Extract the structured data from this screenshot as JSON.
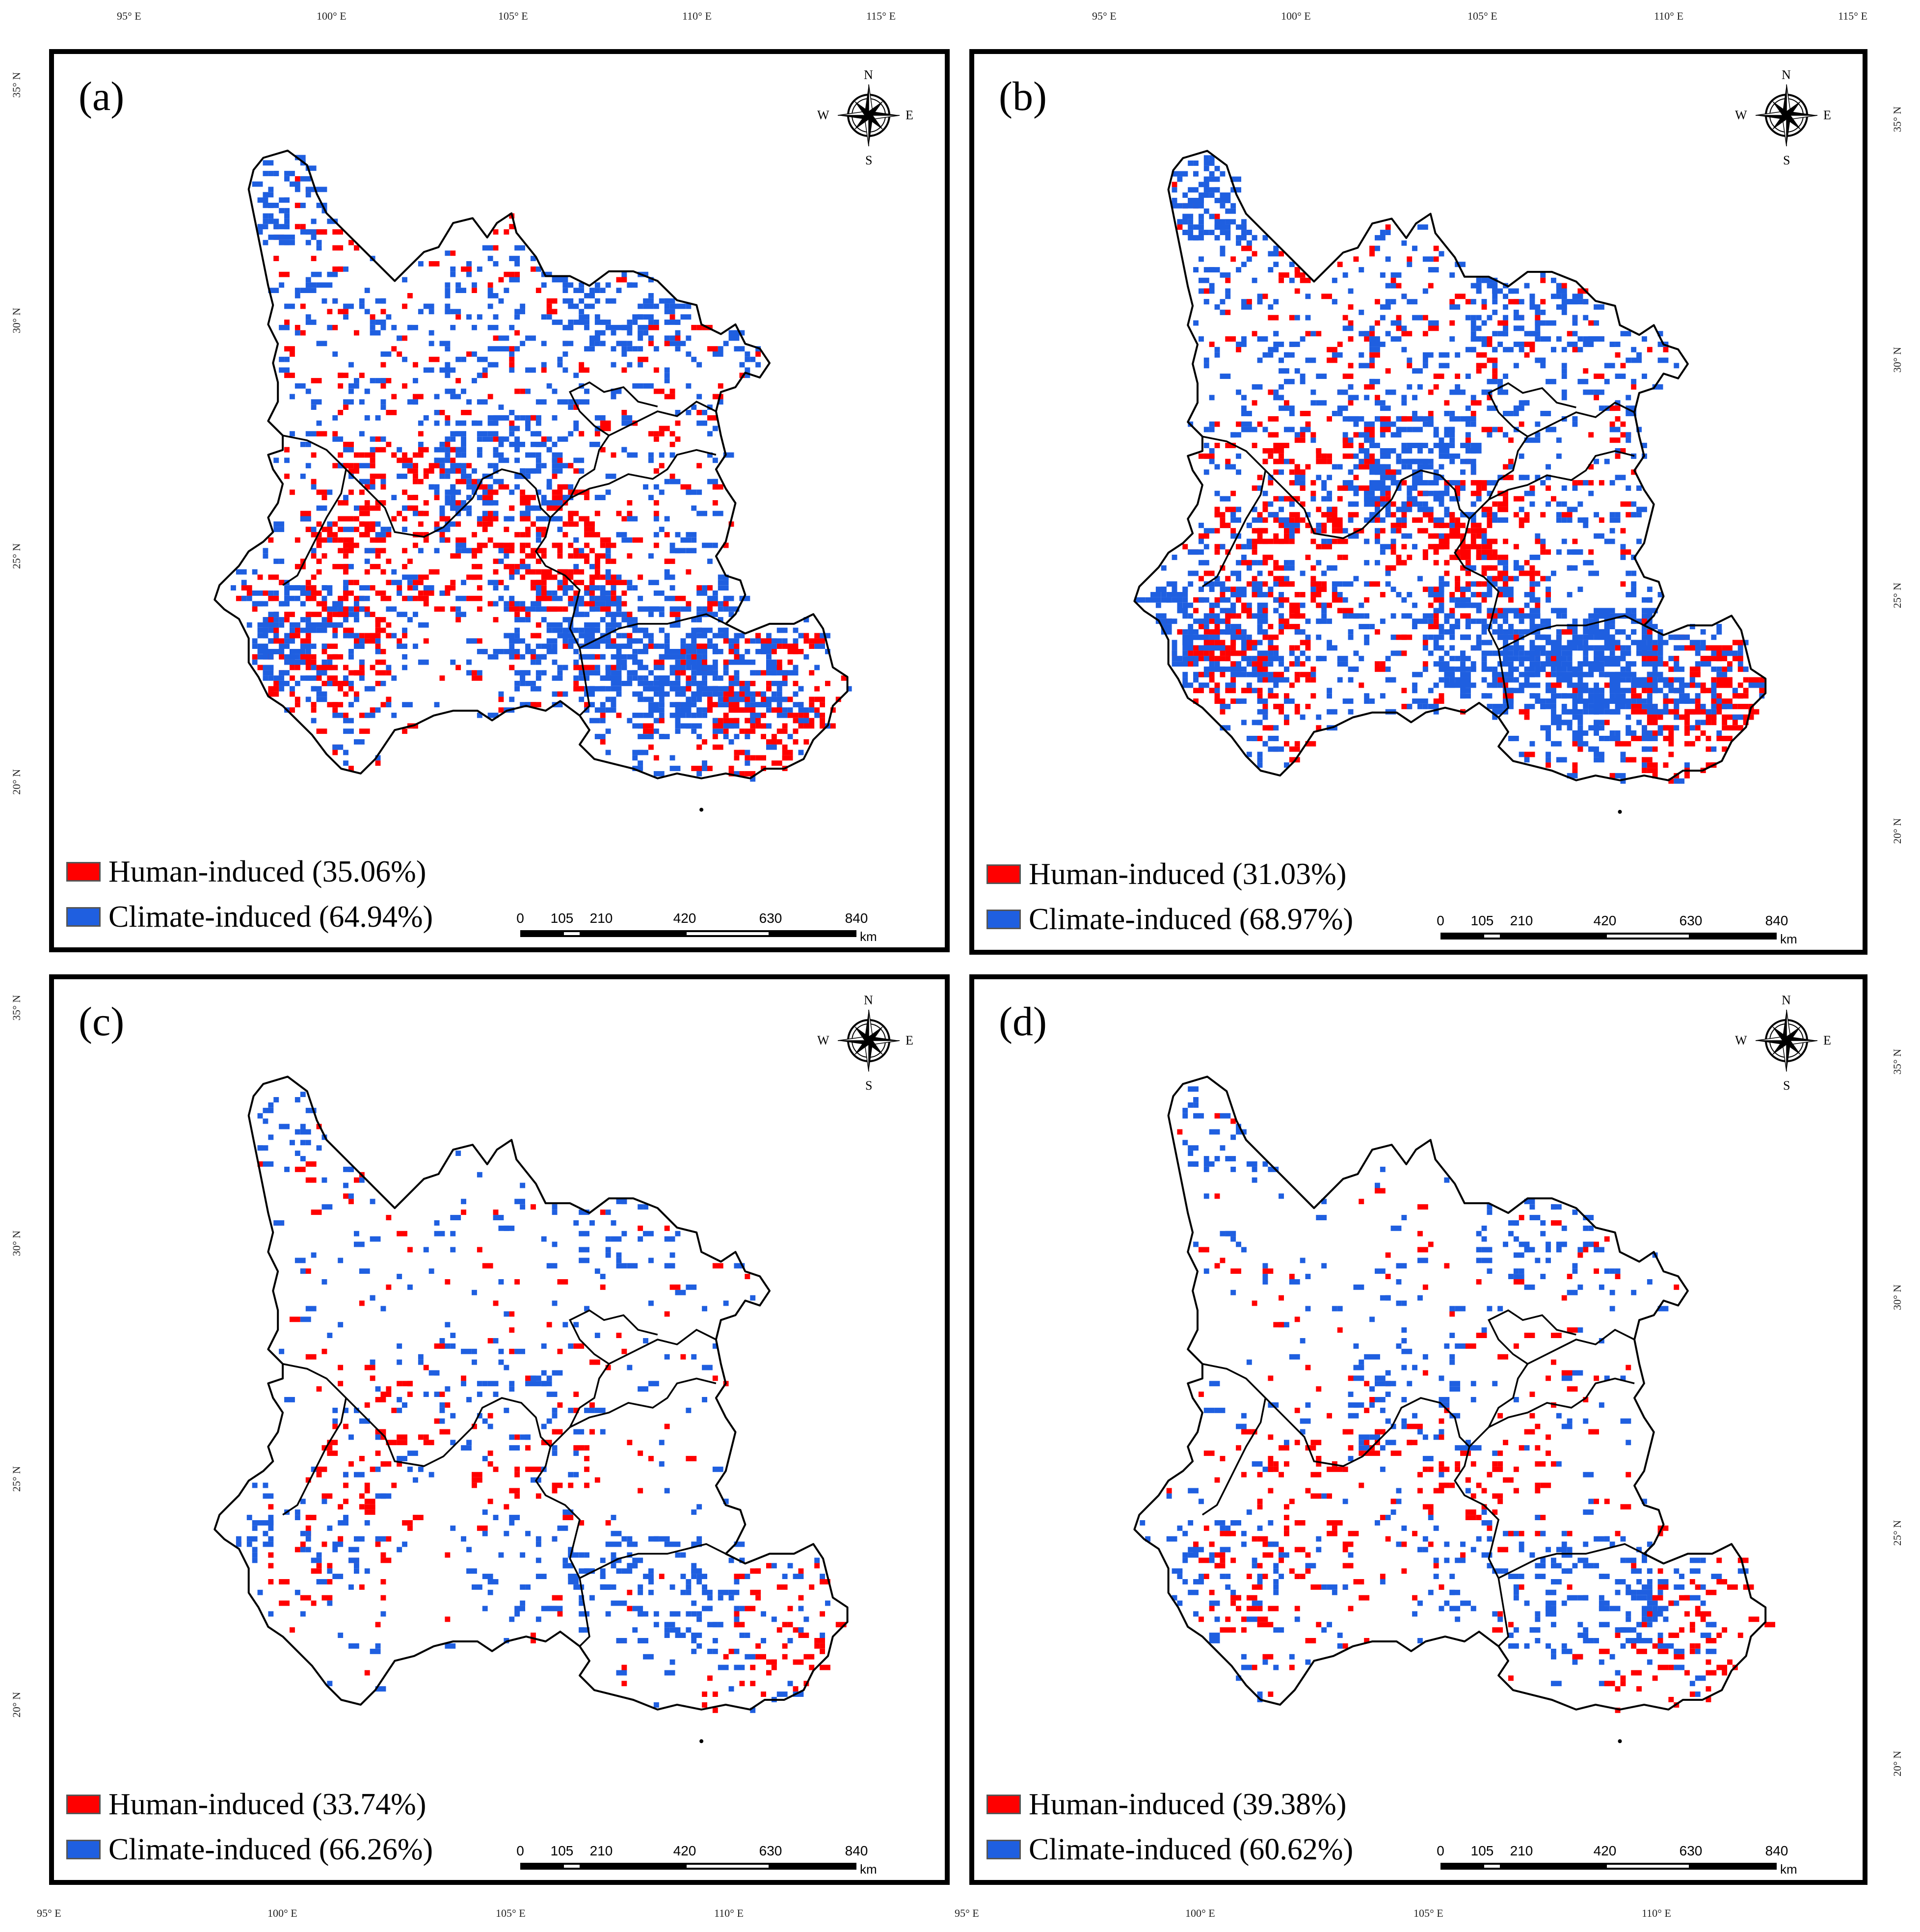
{
  "graticule": {
    "top_lon": [
      "95° E",
      "100° E",
      "105° E",
      "110° E",
      "115° E"
    ],
    "bottom_lon": [
      "95° E",
      "100° E",
      "105° E",
      "110° E"
    ],
    "lat": [
      "35° N",
      "30° N",
      "25° N",
      "20° N"
    ]
  },
  "panels": [
    {
      "id": "a",
      "label": "(a)",
      "legend": [
        {
          "text": "Human-induced (35.06%)",
          "color": "#ff0000"
        },
        {
          "text": "Climate-induced (64.94%)",
          "color": "#1f5fe0"
        }
      ],
      "human_pct": 35.06,
      "climate_pct": 64.94,
      "density": 1.0
    },
    {
      "id": "b",
      "label": "(b)",
      "legend": [
        {
          "text": "Human-induced (31.03%)",
          "color": "#ff0000"
        },
        {
          "text": "Climate-induced (68.97%)",
          "color": "#1f5fe0"
        }
      ],
      "human_pct": 31.03,
      "climate_pct": 68.97,
      "density": 1.2
    },
    {
      "id": "c",
      "label": "(c)",
      "legend": [
        {
          "text": "Human-induced (33.74%)",
          "color": "#ff0000"
        },
        {
          "text": "Climate-induced (66.26%)",
          "color": "#1f5fe0"
        }
      ],
      "human_pct": 33.74,
      "climate_pct": 66.26,
      "density": 0.3
    },
    {
      "id": "d",
      "label": "(d)",
      "legend": [
        {
          "text": "Human-induced (39.38%)",
          "color": "#ff0000"
        },
        {
          "text": "Climate-induced (60.62%)",
          "color": "#1f5fe0"
        }
      ],
      "human_pct": 39.38,
      "climate_pct": 60.62,
      "density": 0.35
    }
  ],
  "compass": {
    "n": "N",
    "s": "S",
    "e": "E",
    "w": "W",
    "icon": "compass-rose-icon"
  },
  "scalebar": {
    "ticks": [
      "0",
      "105",
      "210",
      "420",
      "630",
      "840"
    ],
    "unit": "km"
  },
  "colors": {
    "human": "#ff0000",
    "climate": "#1f5fe0",
    "border": "#000000"
  }
}
